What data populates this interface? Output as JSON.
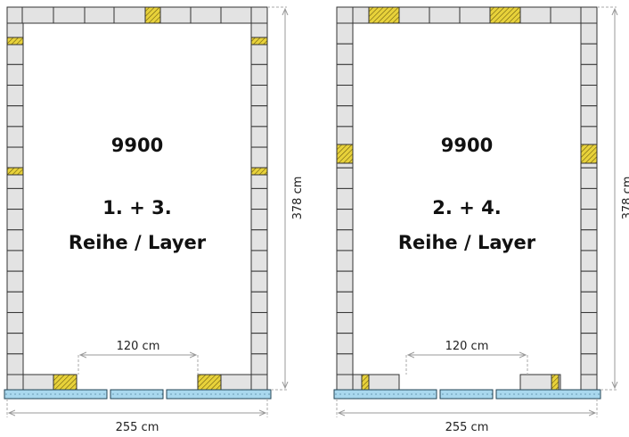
{
  "panels": [
    {
      "code": "9900",
      "layer": "1. + 3.",
      "label": "Reihe / Layer",
      "height_dim": "378 cm",
      "opening_dim": "120 cm",
      "width_dim": "255 cm"
    },
    {
      "code": "9900",
      "layer": "2. + 4.",
      "label": "Reihe / Layer",
      "height_dim": "378 cm",
      "opening_dim": "120 cm",
      "width_dim": "255 cm"
    }
  ]
}
